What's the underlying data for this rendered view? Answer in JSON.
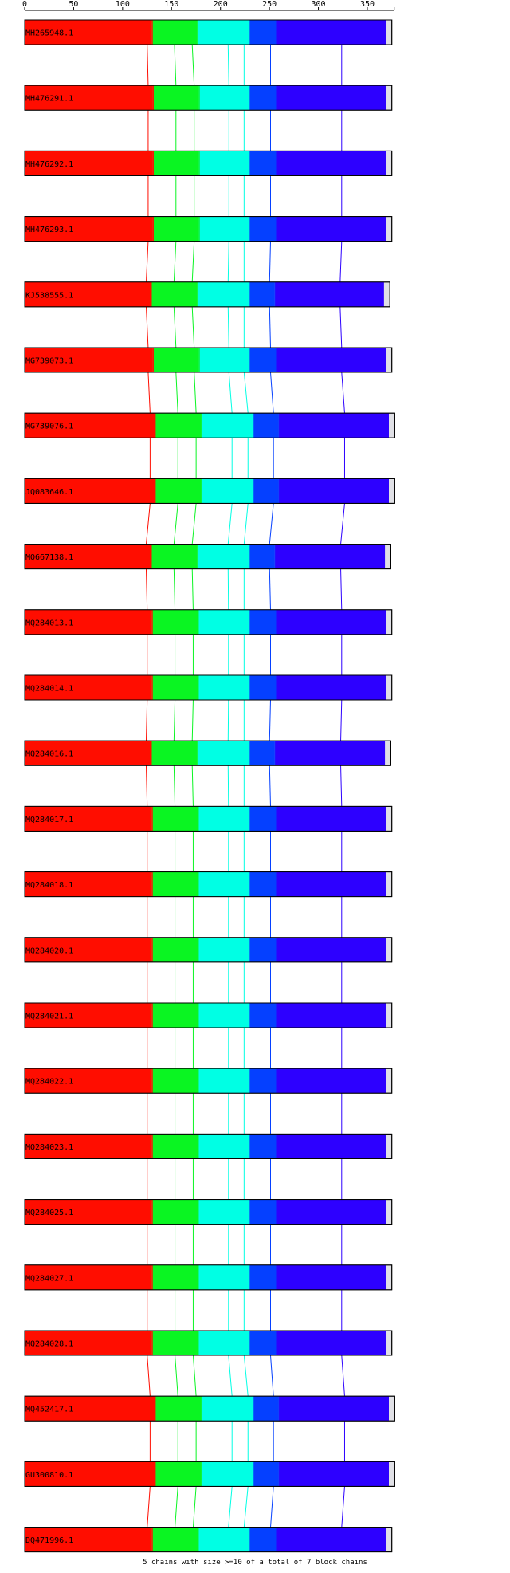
{
  "axis": {
    "ticks": [
      0,
      50,
      100,
      150,
      200,
      250,
      300,
      350
    ],
    "min": 0,
    "max": 375
  },
  "block_colors": [
    "#ff0d00",
    "#0af522",
    "#00ffe4",
    "#0540ff",
    "#2d00ff"
  ],
  "sequences": [
    {
      "name": "MH265948.1",
      "length": 375,
      "blocks": [
        [
          0,
          130
        ],
        [
          130,
          176
        ],
        [
          176,
          229
        ],
        [
          229,
          256
        ],
        [
          256,
          369
        ]
      ]
    },
    {
      "name": "MH476291.1",
      "length": 375,
      "blocks": [
        [
          0,
          131
        ],
        [
          131,
          178
        ],
        [
          178,
          229
        ],
        [
          229,
          256
        ],
        [
          256,
          369
        ]
      ]
    },
    {
      "name": "MH476292.1",
      "length": 375,
      "blocks": [
        [
          0,
          131
        ],
        [
          131,
          178
        ],
        [
          178,
          229
        ],
        [
          229,
          256
        ],
        [
          256,
          369
        ]
      ]
    },
    {
      "name": "MH476293.1",
      "length": 375,
      "blocks": [
        [
          0,
          131
        ],
        [
          131,
          178
        ],
        [
          178,
          229
        ],
        [
          229,
          256
        ],
        [
          256,
          369
        ]
      ]
    },
    {
      "name": "KJ538555.1",
      "length": 373,
      "blocks": [
        [
          0,
          129
        ],
        [
          129,
          176
        ],
        [
          176,
          229
        ],
        [
          229,
          255
        ],
        [
          255,
          367
        ]
      ]
    },
    {
      "name": "MG739073.1",
      "length": 375,
      "blocks": [
        [
          0,
          131
        ],
        [
          131,
          178
        ],
        [
          178,
          229
        ],
        [
          229,
          256
        ],
        [
          256,
          369
        ]
      ]
    },
    {
      "name": "MG739076.1",
      "length": 378,
      "blocks": [
        [
          0,
          133
        ],
        [
          133,
          180
        ],
        [
          180,
          233
        ],
        [
          233,
          259
        ],
        [
          259,
          372
        ]
      ]
    },
    {
      "name": "JQ083646.1",
      "length": 378,
      "blocks": [
        [
          0,
          133
        ],
        [
          133,
          180
        ],
        [
          180,
          233
        ],
        [
          233,
          259
        ],
        [
          259,
          372
        ]
      ]
    },
    {
      "name": "MQ667138.1",
      "length": 374,
      "blocks": [
        [
          0,
          129
        ],
        [
          129,
          176
        ],
        [
          176,
          229
        ],
        [
          229,
          255
        ],
        [
          255,
          368
        ]
      ]
    },
    {
      "name": "MQ284013.1",
      "length": 375,
      "blocks": [
        [
          0,
          130
        ],
        [
          130,
          177
        ],
        [
          177,
          229
        ],
        [
          229,
          256
        ],
        [
          256,
          369
        ]
      ]
    },
    {
      "name": "MQ284014.1",
      "length": 375,
      "blocks": [
        [
          0,
          130
        ],
        [
          130,
          177
        ],
        [
          177,
          229
        ],
        [
          229,
          256
        ],
        [
          256,
          369
        ]
      ]
    },
    {
      "name": "MQ284016.1",
      "length": 374,
      "blocks": [
        [
          0,
          129
        ],
        [
          129,
          176
        ],
        [
          176,
          229
        ],
        [
          229,
          255
        ],
        [
          255,
          368
        ]
      ]
    },
    {
      "name": "MQ284017.1",
      "length": 375,
      "blocks": [
        [
          0,
          130
        ],
        [
          130,
          177
        ],
        [
          177,
          229
        ],
        [
          229,
          256
        ],
        [
          256,
          369
        ]
      ]
    },
    {
      "name": "MQ284018.1",
      "length": 375,
      "blocks": [
        [
          0,
          130
        ],
        [
          130,
          177
        ],
        [
          177,
          229
        ],
        [
          229,
          256
        ],
        [
          256,
          369
        ]
      ]
    },
    {
      "name": "MQ284020.1",
      "length": 375,
      "blocks": [
        [
          0,
          130
        ],
        [
          130,
          177
        ],
        [
          177,
          229
        ],
        [
          229,
          256
        ],
        [
          256,
          369
        ]
      ]
    },
    {
      "name": "MQ284021.1",
      "length": 375,
      "blocks": [
        [
          0,
          130
        ],
        [
          130,
          177
        ],
        [
          177,
          229
        ],
        [
          229,
          256
        ],
        [
          256,
          369
        ]
      ]
    },
    {
      "name": "MQ284022.1",
      "length": 375,
      "blocks": [
        [
          0,
          130
        ],
        [
          130,
          177
        ],
        [
          177,
          229
        ],
        [
          229,
          256
        ],
        [
          256,
          369
        ]
      ]
    },
    {
      "name": "MQ284023.1",
      "length": 375,
      "blocks": [
        [
          0,
          130
        ],
        [
          130,
          177
        ],
        [
          177,
          229
        ],
        [
          229,
          256
        ],
        [
          256,
          369
        ]
      ]
    },
    {
      "name": "MQ284025.1",
      "length": 375,
      "blocks": [
        [
          0,
          130
        ],
        [
          130,
          177
        ],
        [
          177,
          229
        ],
        [
          229,
          256
        ],
        [
          256,
          369
        ]
      ]
    },
    {
      "name": "MQ284027.1",
      "length": 375,
      "blocks": [
        [
          0,
          130
        ],
        [
          130,
          177
        ],
        [
          177,
          229
        ],
        [
          229,
          256
        ],
        [
          256,
          369
        ]
      ]
    },
    {
      "name": "MQ284028.1",
      "length": 375,
      "blocks": [
        [
          0,
          130
        ],
        [
          130,
          177
        ],
        [
          177,
          229
        ],
        [
          229,
          256
        ],
        [
          256,
          369
        ]
      ]
    },
    {
      "name": "MQ452417.1",
      "length": 378,
      "blocks": [
        [
          0,
          133
        ],
        [
          133,
          180
        ],
        [
          180,
          233
        ],
        [
          233,
          259
        ],
        [
          259,
          372
        ]
      ]
    },
    {
      "name": "GU300810.1",
      "length": 378,
      "blocks": [
        [
          0,
          133
        ],
        [
          133,
          180
        ],
        [
          180,
          233
        ],
        [
          233,
          259
        ],
        [
          259,
          372
        ]
      ]
    },
    {
      "name": "DQ471996.1",
      "length": 375,
      "blocks": [
        [
          0,
          130
        ],
        [
          130,
          177
        ],
        [
          177,
          229
        ],
        [
          229,
          256
        ],
        [
          256,
          369
        ]
      ]
    }
  ],
  "footer": "5 chains with size >=10 of a total of 7 block chains"
}
